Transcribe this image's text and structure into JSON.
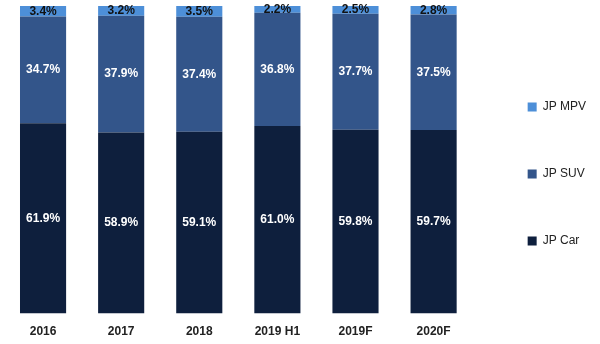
{
  "chart_data": {
    "type": "bar",
    "categories": [
      "2016",
      "2017",
      "2018",
      "2019 H1",
      "2019F",
      "2020F"
    ],
    "series": [
      {
        "name": "JP Car",
        "color": "#0e1f3d",
        "values": [
          61.9,
          58.9,
          59.1,
          61.0,
          59.8,
          59.7
        ],
        "value_labels": [
          "61.9%",
          "58.9%",
          "59.1%",
          "61.0%",
          "59.8%",
          "59.7%"
        ]
      },
      {
        "name": "JP SUV",
        "color": "#33558a",
        "values": [
          34.7,
          37.9,
          37.4,
          36.8,
          37.7,
          37.5
        ],
        "value_labels": [
          "34.7%",
          "37.9%",
          "37.4%",
          "36.8%",
          "37.7%",
          "37.5%"
        ]
      },
      {
        "name": "JP MPV",
        "color": "#4d8fd8",
        "values": [
          3.4,
          3.2,
          3.5,
          2.2,
          2.5,
          2.8
        ],
        "value_labels": [
          "3.4%",
          "3.2%",
          "3.5%",
          "2.2%",
          "2.5%",
          "2.8%"
        ]
      }
    ],
    "stacked": true,
    "data_labels": true,
    "legend": "right",
    "grid": false,
    "tick_labels": "x",
    "ylim": [
      0,
      100
    ]
  }
}
